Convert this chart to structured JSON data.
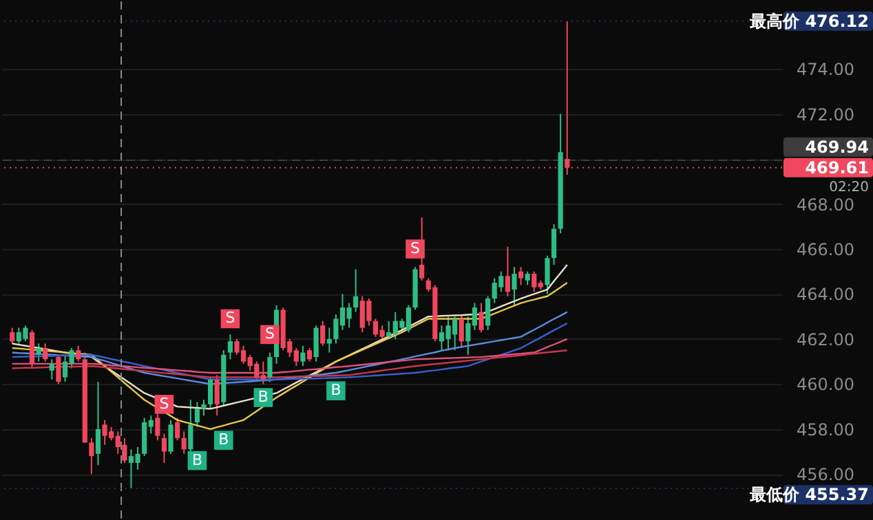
{
  "chart_data": {
    "type": "candlestick",
    "categories": [
      null,
      null,
      null,
      null,
      null,
      null,
      null,
      null,
      null,
      null,
      null,
      null,
      null,
      null,
      null,
      null,
      null,
      null,
      null,
      null,
      null,
      null,
      null,
      null,
      null,
      null,
      null,
      null,
      null,
      null,
      null,
      null,
      null,
      null,
      null,
      null,
      null,
      null,
      null,
      null,
      null,
      null,
      null,
      null,
      null,
      null,
      null,
      null,
      null,
      null,
      null,
      null,
      null,
      null,
      null,
      null,
      null,
      null,
      null,
      null,
      null,
      null,
      null,
      null,
      null,
      null,
      null,
      null,
      null,
      null,
      null,
      null,
      null,
      null,
      null,
      null,
      null,
      null,
      null,
      null,
      null,
      null,
      null,
      null,
      null
    ],
    "ohlc": [
      [
        462.3,
        462.5,
        461.8,
        461.9
      ],
      [
        461.9,
        462.5,
        461.8,
        462.3
      ],
      [
        462.0,
        462.6,
        461.9,
        462.5
      ],
      [
        462.3,
        462.4,
        460.7,
        460.9
      ],
      [
        461.3,
        461.8,
        461.0,
        461.6
      ],
      [
        461.6,
        461.8,
        461.0,
        461.1
      ],
      [
        460.6,
        461.1,
        460.2,
        460.9
      ],
      [
        461.2,
        461.3,
        460.0,
        460.1
      ],
      [
        460.3,
        461.3,
        460.1,
        461.0
      ],
      [
        460.9,
        461.6,
        460.7,
        461.5
      ],
      [
        461.5,
        461.7,
        461.0,
        461.1
      ],
      [
        461.1,
        461.4,
        457.4,
        457.4
      ],
      [
        457.4,
        457.6,
        456.0,
        456.8
      ],
      [
        456.9,
        460.1,
        456.4,
        458.0
      ],
      [
        458.2,
        458.4,
        457.3,
        457.7
      ],
      [
        457.9,
        458.1,
        457.5,
        457.6
      ],
      [
        457.7,
        457.9,
        456.9,
        457.2
      ],
      [
        457.3,
        457.6,
        456.5,
        456.6
      ],
      [
        456.5,
        457.1,
        455.37,
        456.8
      ],
      [
        456.5,
        457.2,
        456.2,
        456.9
      ],
      [
        456.9,
        458.5,
        456.8,
        458.3
      ],
      [
        458.1,
        458.6,
        457.8,
        458.4
      ],
      [
        458.5,
        458.7,
        457.5,
        457.7
      ],
      [
        457.6,
        457.8,
        456.5,
        457.0
      ],
      [
        457.0,
        458.4,
        456.9,
        458.2
      ],
      [
        458.3,
        458.5,
        457.5,
        457.6
      ],
      [
        457.6,
        457.9,
        456.9,
        457.1
      ],
      [
        457.1,
        459.3,
        456.9,
        458.2
      ],
      [
        458.3,
        459.2,
        458.1,
        458.9
      ],
      [
        458.9,
        459.3,
        458.6,
        459.1
      ],
      [
        459.1,
        460.3,
        458.9,
        460.2
      ],
      [
        460.2,
        460.4,
        458.6,
        459.1
      ],
      [
        459.2,
        461.5,
        459.0,
        461.3
      ],
      [
        461.4,
        462.2,
        461.1,
        461.9
      ],
      [
        461.9,
        462.0,
        461.3,
        461.4
      ],
      [
        461.5,
        461.7,
        460.9,
        461.0
      ],
      [
        461.2,
        461.3,
        460.6,
        460.8
      ],
      [
        460.9,
        461.0,
        460.1,
        460.3
      ],
      [
        460.4,
        461.0,
        460.0,
        460.2
      ],
      [
        460.3,
        461.4,
        460.1,
        461.2
      ],
      [
        461.2,
        463.5,
        460.9,
        463.3
      ],
      [
        463.3,
        463.4,
        461.5,
        461.6
      ],
      [
        461.9,
        462.0,
        461.2,
        461.4
      ],
      [
        461.5,
        461.6,
        460.8,
        461.0
      ],
      [
        461.0,
        461.7,
        460.8,
        461.4
      ],
      [
        461.5,
        461.6,
        461.0,
        461.1
      ],
      [
        461.2,
        462.6,
        461.0,
        462.5
      ],
      [
        462.6,
        462.8,
        461.7,
        461.8
      ],
      [
        461.8,
        462.5,
        461.4,
        462.0
      ],
      [
        462.0,
        463.1,
        461.8,
        462.9
      ],
      [
        462.6,
        464.0,
        462.4,
        463.4
      ],
      [
        462.9,
        463.6,
        462.5,
        463.4
      ],
      [
        463.4,
        465.1,
        463.2,
        463.9
      ],
      [
        463.7,
        463.9,
        462.3,
        462.5
      ],
      [
        463.7,
        463.8,
        462.6,
        462.8
      ],
      [
        462.8,
        462.9,
        462.1,
        462.2
      ],
      [
        462.4,
        462.6,
        462.0,
        462.1
      ],
      [
        462.1,
        462.8,
        462.0,
        462.3
      ],
      [
        462.2,
        463.2,
        462.0,
        462.8
      ],
      [
        462.5,
        462.9,
        462.3,
        462.8
      ],
      [
        462.4,
        463.5,
        462.3,
        463.4
      ],
      [
        463.4,
        465.2,
        463.3,
        465.1
      ],
      [
        465.3,
        467.4,
        464.6,
        464.7
      ],
      [
        464.6,
        464.7,
        464.1,
        464.2
      ],
      [
        464.3,
        464.4,
        461.9,
        462.0
      ],
      [
        461.9,
        462.6,
        461.5,
        462.3
      ],
      [
        462.0,
        463.0,
        461.5,
        462.6
      ],
      [
        462.2,
        463.0,
        461.5,
        462.9
      ],
      [
        462.9,
        463.1,
        461.6,
        461.9
      ],
      [
        461.9,
        463.0,
        461.3,
        462.7
      ],
      [
        462.6,
        463.6,
        462.4,
        463.4
      ],
      [
        463.2,
        463.6,
        462.3,
        462.4
      ],
      [
        462.6,
        463.9,
        462.4,
        463.8
      ],
      [
        463.8,
        464.7,
        463.6,
        464.5
      ],
      [
        464.3,
        465.0,
        464.1,
        464.8
      ],
      [
        464.8,
        466.1,
        463.9,
        464.1
      ],
      [
        464.2,
        465.2,
        463.5,
        464.9
      ],
      [
        465.0,
        465.2,
        464.4,
        464.7
      ],
      [
        464.6,
        465.0,
        464.4,
        464.9
      ],
      [
        464.9,
        465.0,
        464.1,
        464.3
      ],
      [
        464.5,
        464.6,
        464.2,
        464.3
      ],
      [
        464.4,
        465.7,
        464.0,
        465.6
      ],
      [
        465.6,
        467.1,
        465.3,
        466.9
      ],
      [
        466.9,
        472.0,
        466.7,
        470.3
      ],
      [
        470.0,
        476.12,
        469.3,
        469.61
      ]
    ],
    "colors": [
      "#f0475e",
      "#2ebd85",
      "#2ebd85",
      "#f0475e",
      "#2ebd85",
      "#f0475e",
      "#2ebd85",
      "#f0475e",
      "#2ebd85",
      "#2ebd85",
      "#f0475e",
      "#f0475e",
      "#f0475e",
      "#2ebd85",
      "#f0475e",
      "#f0475e",
      "#f0475e",
      "#f0475e",
      "#2ebd85",
      "#2ebd85",
      "#2ebd85",
      "#2ebd85",
      "#f0475e",
      "#f0475e",
      "#2ebd85",
      "#f0475e",
      "#f0475e",
      "#2ebd85",
      "#2ebd85",
      "#2ebd85",
      "#2ebd85",
      "#f0475e",
      "#2ebd85",
      "#2ebd85",
      "#f0475e",
      "#f0475e",
      "#f0475e",
      "#f0475e",
      "#f0475e",
      "#2ebd85",
      "#2ebd85",
      "#f0475e",
      "#f0475e",
      "#f0475e",
      "#2ebd85",
      "#f0475e",
      "#2ebd85",
      "#f0475e",
      "#2ebd85",
      "#2ebd85",
      "#2ebd85",
      "#2ebd85",
      "#2ebd85",
      "#f0475e",
      "#f0475e",
      "#f0475e",
      "#f0475e",
      "#2ebd85",
      "#2ebd85",
      "#2ebd85",
      "#2ebd85",
      "#2ebd85",
      "#f0475e",
      "#f0475e",
      "#f0475e",
      "#2ebd85",
      "#2ebd85",
      "#2ebd85",
      "#f0475e",
      "#2ebd85",
      "#2ebd85",
      "#f0475e",
      "#2ebd85",
      "#2ebd85",
      "#2ebd85",
      "#f0475e",
      "#2ebd85",
      "#f0475e",
      "#2ebd85",
      "#f0475e",
      "#f0475e",
      "#2ebd85",
      "#2ebd85",
      "#2ebd85",
      "#f0475e"
    ],
    "series": [
      {
        "type": "line",
        "color": "#e8e0c8",
        "values": [
          461.8,
          461.75,
          461.7,
          461.65,
          461.6,
          461.55,
          461.5,
          461.45,
          461.4,
          461.35,
          461.3,
          461.25,
          461.2,
          461.0,
          460.8,
          460.6,
          460.4,
          460.2,
          460.0,
          459.8,
          459.6,
          459.48,
          459.36,
          459.24,
          459.12,
          459.0,
          458.98,
          458.96,
          458.94,
          458.92,
          458.9,
          458.97,
          459.04,
          459.11,
          459.18,
          459.25,
          459.32,
          459.39,
          459.46,
          459.53,
          459.6,
          459.76,
          459.91,
          460.07,
          460.22,
          460.38,
          460.53,
          460.69,
          460.84,
          461.0,
          461.14,
          461.28,
          461.42,
          461.56,
          461.7,
          461.84,
          461.98,
          462.12,
          462.26,
          462.4,
          462.55,
          462.7,
          462.85,
          463.0,
          463.01,
          463.03,
          463.04,
          463.05,
          463.06,
          463.08,
          463.09,
          463.1,
          463.22,
          463.33,
          463.45,
          463.57,
          463.68,
          463.8,
          463.9,
          464.0,
          464.1,
          464.2,
          464.57,
          464.93,
          465.3
        ]
      },
      {
        "type": "line",
        "color": "#e6c84a",
        "values": [
          461.6,
          461.58,
          461.55,
          461.53,
          461.5,
          461.48,
          461.45,
          461.43,
          461.4,
          461.38,
          461.35,
          461.33,
          461.3,
          461.05,
          460.8,
          460.55,
          460.3,
          460.05,
          459.8,
          459.55,
          459.3,
          459.12,
          458.94,
          458.76,
          458.58,
          458.4,
          458.32,
          458.24,
          458.16,
          458.08,
          458.0,
          458.08,
          458.16,
          458.24,
          458.32,
          458.4,
          458.6,
          458.8,
          459.0,
          459.2,
          459.4,
          459.58,
          459.76,
          459.93,
          460.11,
          460.29,
          460.47,
          460.64,
          460.82,
          461.0,
          461.13,
          461.26,
          461.39,
          461.52,
          461.65,
          461.78,
          461.91,
          462.04,
          462.17,
          462.3,
          462.45,
          462.6,
          462.75,
          462.9,
          462.9,
          462.9,
          462.9,
          462.9,
          462.9,
          462.9,
          462.9,
          462.9,
          463.02,
          463.13,
          463.25,
          463.37,
          463.48,
          463.6,
          463.68,
          463.75,
          463.83,
          463.9,
          464.1,
          464.3,
          464.5
        ]
      },
      {
        "type": "line",
        "color": "#5a8de0",
        "values": [
          461.4,
          461.38,
          461.37,
          461.35,
          461.33,
          461.32,
          461.3,
          461.28,
          461.27,
          461.25,
          461.23,
          461.22,
          461.2,
          461.11,
          461.03,
          460.94,
          460.85,
          460.76,
          460.68,
          460.59,
          460.5,
          460.45,
          460.4,
          460.35,
          460.3,
          460.25,
          460.2,
          460.15,
          460.1,
          460.05,
          460.0,
          460.02,
          460.04,
          460.06,
          460.08,
          460.1,
          460.12,
          460.14,
          460.16,
          460.18,
          460.2,
          460.23,
          460.27,
          460.3,
          460.33,
          460.37,
          460.4,
          460.43,
          460.47,
          460.5,
          460.56,
          460.62,
          460.68,
          460.74,
          460.8,
          460.86,
          460.92,
          460.98,
          461.04,
          461.1,
          461.16,
          461.23,
          461.29,
          461.35,
          461.41,
          461.48,
          461.54,
          461.6,
          461.65,
          461.7,
          461.75,
          461.8,
          461.85,
          461.9,
          461.95,
          462.0,
          462.05,
          462.1,
          462.26,
          462.41,
          462.57,
          462.73,
          462.89,
          463.04,
          463.2
        ]
      },
      {
        "type": "line",
        "color": "#3a5fd0",
        "values": [
          461.2,
          461.21,
          461.22,
          461.23,
          461.23,
          461.24,
          461.25,
          461.26,
          461.27,
          461.28,
          461.28,
          461.29,
          461.3,
          461.24,
          461.18,
          461.11,
          461.05,
          460.99,
          460.93,
          460.86,
          460.8,
          460.74,
          460.68,
          460.62,
          460.56,
          460.5,
          460.44,
          460.38,
          460.32,
          460.26,
          460.2,
          460.2,
          460.2,
          460.2,
          460.2,
          460.2,
          460.2,
          460.2,
          460.2,
          460.2,
          460.2,
          460.21,
          460.22,
          460.23,
          460.24,
          460.25,
          460.25,
          460.26,
          460.27,
          460.28,
          460.29,
          460.3,
          460.32,
          460.34,
          460.36,
          460.38,
          460.4,
          460.42,
          460.44,
          460.46,
          460.48,
          460.5,
          460.54,
          460.58,
          460.61,
          460.65,
          460.69,
          460.73,
          460.76,
          460.8,
          460.9,
          461.0,
          461.1,
          461.2,
          461.3,
          461.4,
          461.5,
          461.6,
          461.76,
          461.91,
          462.07,
          462.23,
          462.39,
          462.54,
          462.7
        ]
      },
      {
        "type": "line",
        "color": "#e0507a",
        "values": [
          460.9,
          460.9,
          460.9,
          460.9,
          460.9,
          460.9,
          460.9,
          460.9,
          460.9,
          460.9,
          460.9,
          460.9,
          460.9,
          460.88,
          460.86,
          460.83,
          460.81,
          460.79,
          460.77,
          460.74,
          460.72,
          460.7,
          460.68,
          460.66,
          460.63,
          460.61,
          460.59,
          460.57,
          460.54,
          460.52,
          460.5,
          460.5,
          460.5,
          460.5,
          460.5,
          460.5,
          460.5,
          460.5,
          460.5,
          460.5,
          460.5,
          460.53,
          460.55,
          460.58,
          460.61,
          460.64,
          460.66,
          460.69,
          460.72,
          460.75,
          460.77,
          460.8,
          460.83,
          460.86,
          460.89,
          460.92,
          460.95,
          460.98,
          461.01,
          461.04,
          461.07,
          461.1,
          461.11,
          461.12,
          461.13,
          461.14,
          461.15,
          461.16,
          461.17,
          461.18,
          461.19,
          461.2,
          461.23,
          461.25,
          461.28,
          461.3,
          461.33,
          461.35,
          461.38,
          461.4,
          461.52,
          461.64,
          461.76,
          461.88,
          462.0
        ]
      },
      {
        "type": "line",
        "color": "#c8384a",
        "values": [
          460.7,
          460.71,
          460.72,
          460.72,
          460.73,
          460.74,
          460.75,
          460.76,
          460.77,
          460.77,
          460.78,
          460.79,
          460.8,
          460.77,
          460.74,
          460.72,
          460.69,
          460.66,
          460.63,
          460.61,
          460.58,
          460.55,
          460.52,
          460.49,
          460.47,
          460.44,
          460.41,
          460.38,
          460.36,
          460.33,
          460.3,
          460.3,
          460.3,
          460.3,
          460.3,
          460.3,
          460.3,
          460.3,
          460.3,
          460.3,
          460.3,
          460.31,
          460.32,
          460.33,
          460.34,
          460.35,
          460.35,
          460.36,
          460.37,
          460.38,
          460.39,
          460.4,
          460.44,
          460.48,
          460.52,
          460.56,
          460.6,
          460.64,
          460.68,
          460.72,
          460.76,
          460.8,
          460.83,
          460.86,
          460.89,
          460.92,
          460.95,
          460.98,
          461.01,
          461.04,
          461.07,
          461.1,
          461.13,
          461.16,
          461.19,
          461.22,
          461.25,
          461.28,
          461.32,
          461.35,
          461.38,
          461.41,
          461.44,
          461.47,
          461.5
        ]
      },
      {
        "type": "scatter",
        "color": "#f0475e",
        "marker": "square",
        "values": [
          null,
          null,
          null,
          null,
          null,
          null,
          null,
          null,
          null,
          null,
          null,
          null,
          null,
          null,
          null,
          null,
          null,
          null,
          null,
          null,
          null,
          null,
          null,
          459.1,
          null,
          null,
          null,
          null,
          null,
          null,
          null,
          null,
          null,
          462.9,
          null,
          null,
          null,
          null,
          null,
          462.2,
          null,
          null,
          null,
          null,
          null,
          null,
          null,
          null,
          null,
          null,
          null,
          null,
          null,
          null,
          null,
          null,
          null,
          null,
          null,
          null,
          null,
          466.0,
          null,
          null,
          null,
          null,
          null,
          null,
          null,
          null,
          null,
          null,
          null,
          null,
          null,
          null,
          null,
          null,
          null,
          null,
          null,
          null,
          null,
          null,
          null
        ],
        "value_labels": [
          null,
          null,
          null,
          null,
          null,
          null,
          null,
          null,
          null,
          null,
          null,
          null,
          null,
          null,
          null,
          null,
          null,
          null,
          null,
          null,
          null,
          null,
          null,
          "S",
          null,
          null,
          null,
          null,
          null,
          null,
          null,
          null,
          null,
          "S",
          null,
          null,
          null,
          null,
          null,
          "S",
          null,
          null,
          null,
          null,
          null,
          null,
          null,
          null,
          null,
          null,
          null,
          null,
          null,
          null,
          null,
          null,
          null,
          null,
          null,
          null,
          null,
          "S",
          null,
          null,
          null,
          null,
          null,
          null,
          null,
          null,
          null,
          null,
          null,
          null,
          null,
          null,
          null,
          null,
          null,
          null,
          null,
          null,
          null,
          null,
          null
        ]
      },
      {
        "type": "scatter",
        "color": "#1fb386",
        "marker": "square",
        "values": [
          null,
          null,
          null,
          null,
          null,
          null,
          null,
          null,
          null,
          null,
          null,
          null,
          null,
          null,
          null,
          null,
          null,
          null,
          null,
          null,
          null,
          null,
          null,
          null,
          null,
          null,
          null,
          null,
          456.6,
          null,
          null,
          null,
          457.5,
          null,
          null,
          null,
          null,
          null,
          459.4,
          null,
          null,
          null,
          null,
          null,
          null,
          null,
          null,
          null,
          null,
          459.7,
          null,
          null,
          null,
          null,
          null,
          null,
          null,
          null,
          null,
          null,
          null,
          null,
          null,
          null,
          null,
          null,
          null,
          null,
          null,
          null,
          null,
          null,
          null,
          null,
          null,
          null,
          null,
          null,
          null,
          null,
          null,
          null,
          null,
          null,
          null
        ],
        "value_labels": [
          null,
          null,
          null,
          null,
          null,
          null,
          null,
          null,
          null,
          null,
          null,
          null,
          null,
          null,
          null,
          null,
          null,
          null,
          null,
          null,
          null,
          null,
          null,
          null,
          null,
          null,
          null,
          null,
          "B",
          null,
          null,
          null,
          "B",
          null,
          null,
          null,
          null,
          null,
          "B",
          null,
          null,
          null,
          null,
          null,
          null,
          null,
          null,
          null,
          null,
          "B",
          null,
          null,
          null,
          null,
          null,
          null,
          null,
          null,
          null,
          null,
          null,
          null,
          null,
          null,
          null,
          null,
          null,
          null,
          null,
          null,
          null,
          null,
          null,
          null,
          null,
          null,
          null,
          null,
          null,
          null,
          null,
          null,
          null,
          null,
          null
        ]
      }
    ],
    "ylim": [
      453.9,
      477.0
    ],
    "yticks": [
      {
        "value": 456,
        "label": "456.00"
      },
      {
        "value": 458,
        "label": "458.00"
      },
      {
        "value": 460,
        "label": "460.00"
      },
      {
        "value": 462,
        "label": "462.00"
      },
      {
        "value": 464,
        "label": "464.00"
      },
      {
        "value": 466,
        "label": "466.00"
      },
      {
        "value": 468,
        "label": "468.00"
      },
      {
        "value": 470,
        "label": null
      },
      {
        "value": 472,
        "label": "472.00"
      },
      {
        "value": 474,
        "label": "474.00"
      }
    ],
    "grid": "y",
    "tick_labels": "y",
    "ref_lines": [
      {
        "axis": "y",
        "value": 476.12,
        "label": "最高价 476.12",
        "color": "#1c3166",
        "line_style": "dotted"
      },
      {
        "axis": "y",
        "value": 469.61,
        "label": "469.61",
        "color": "#f0475e",
        "line_style": "dotted"
      },
      {
        "axis": "y",
        "value": 469.94,
        "label": "469.94",
        "color": "#3c3c3c",
        "line_style": "dashed"
      },
      {
        "axis": "y",
        "value": 455.37,
        "label": "最低价 455.37",
        "color": "#1c3166",
        "line_style": "dotted"
      }
    ],
    "annotations": [
      "02:20"
    ]
  }
}
